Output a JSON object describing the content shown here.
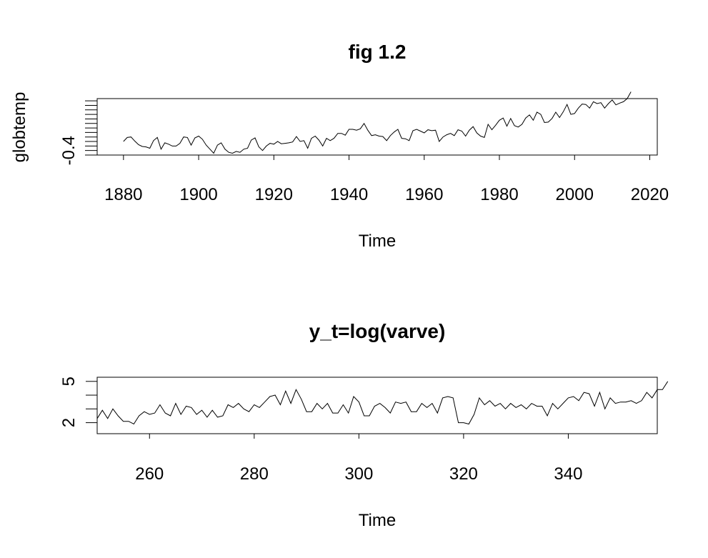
{
  "chart_data": [
    {
      "type": "line",
      "title": "fig 1.2",
      "xlabel": "Time",
      "ylabel": "globtemp",
      "xlim": [
        1873,
        2022
      ],
      "ylim": [
        -0.5,
        0.75
      ],
      "x_ticks": [
        1880,
        1900,
        1920,
        1940,
        1960,
        1980,
        2000,
        2020
      ],
      "x_tick_labels": [
        "1880",
        "1900",
        "1920",
        "1940",
        "1960",
        "1980",
        "2000",
        "2020"
      ],
      "y_ticks": [
        -0.4,
        -0.2,
        0.0,
        0.2,
        0.4,
        0.6
      ],
      "y_tick_labels": [
        "-0.4"
      ],
      "y_minor_ticks": [
        -0.5,
        -0.3,
        -0.1,
        0.1,
        0.3,
        0.5,
        0.7
      ],
      "grid": false,
      "series": [
        {
          "x_start": 1880,
          "x_step": 1,
          "values": [
            -0.2,
            -0.11,
            -0.1,
            -0.19,
            -0.27,
            -0.31,
            -0.32,
            -0.35,
            -0.18,
            -0.11,
            -0.37,
            -0.23,
            -0.26,
            -0.3,
            -0.3,
            -0.24,
            -0.1,
            -0.11,
            -0.28,
            -0.12,
            -0.08,
            -0.15,
            -0.28,
            -0.37,
            -0.46,
            -0.28,
            -0.23,
            -0.37,
            -0.44,
            -0.46,
            -0.42,
            -0.44,
            -0.37,
            -0.35,
            -0.17,
            -0.12,
            -0.32,
            -0.4,
            -0.3,
            -0.24,
            -0.26,
            -0.2,
            -0.25,
            -0.24,
            -0.23,
            -0.21,
            -0.09,
            -0.2,
            -0.18,
            -0.35,
            -0.13,
            -0.08,
            -0.17,
            -0.3,
            -0.13,
            -0.18,
            -0.13,
            -0.02,
            -0.02,
            -0.06,
            0.07,
            0.07,
            0.05,
            0.08,
            0.2,
            0.05,
            -0.07,
            -0.05,
            -0.08,
            -0.09,
            -0.18,
            -0.07,
            0.01,
            0.07,
            -0.13,
            -0.14,
            -0.18,
            0.04,
            0.07,
            0.03,
            -0.01,
            0.06,
            0.04,
            0.05,
            -0.2,
            -0.1,
            -0.05,
            -0.02,
            -0.07,
            0.06,
            0.03,
            -0.08,
            0.05,
            0.13,
            -0.01,
            -0.08,
            -0.11,
            0.18,
            0.06,
            0.16,
            0.27,
            0.32,
            0.14,
            0.31,
            0.15,
            0.12,
            0.18,
            0.32,
            0.39,
            0.27,
            0.45,
            0.4,
            0.22,
            0.23,
            0.31,
            0.45,
            0.33,
            0.46,
            0.62,
            0.4,
            0.42,
            0.54,
            0.63,
            0.62,
            0.54,
            0.68,
            0.64,
            0.66,
            0.54,
            0.64,
            0.72,
            0.61,
            0.65,
            0.68,
            0.75,
            0.9
          ]
        }
      ]
    },
    {
      "type": "line",
      "title": "y_t=log(varve)",
      "xlabel": "Time",
      "ylabel": "",
      "xlim": [
        250,
        357
      ],
      "ylim": [
        1.2,
        5.3
      ],
      "x_ticks": [
        260,
        280,
        300,
        320,
        340
      ],
      "x_tick_labels": [
        "260",
        "280",
        "300",
        "320",
        "340"
      ],
      "y_ticks": [
        2,
        3,
        4,
        5
      ],
      "y_tick_labels": [
        "2",
        "5"
      ],
      "grid": false,
      "series": [
        {
          "x_start": 250,
          "x_step": 1,
          "values": [
            2.3,
            2.9,
            2.3,
            3.0,
            2.5,
            2.1,
            2.1,
            1.9,
            2.5,
            2.8,
            2.6,
            2.7,
            3.3,
            2.7,
            2.5,
            3.4,
            2.6,
            3.2,
            3.1,
            2.6,
            2.9,
            2.4,
            2.9,
            2.4,
            2.5,
            3.3,
            3.1,
            3.4,
            3.0,
            2.8,
            3.3,
            3.1,
            3.5,
            3.9,
            4.0,
            3.3,
            4.3,
            3.4,
            4.4,
            3.7,
            2.8,
            2.8,
            3.4,
            3.0,
            3.4,
            2.7,
            2.7,
            3.3,
            2.7,
            3.9,
            3.5,
            2.5,
            2.5,
            3.2,
            3.4,
            3.1,
            2.7,
            3.5,
            3.4,
            3.5,
            2.8,
            2.8,
            3.4,
            3.1,
            3.4,
            2.7,
            3.8,
            3.9,
            3.8,
            2.0,
            2.0,
            1.9,
            2.6,
            3.8,
            3.3,
            3.6,
            3.2,
            3.4,
            3.0,
            3.4,
            3.1,
            3.3,
            3.0,
            3.4,
            3.2,
            3.2,
            2.5,
            3.4,
            3.0,
            3.4,
            3.8,
            3.9,
            3.6,
            4.2,
            4.1,
            3.2,
            4.2,
            3.0,
            3.8,
            3.4,
            3.5,
            3.5,
            3.6,
            3.4,
            3.6,
            4.2,
            3.8,
            4.4,
            4.4,
            5.0
          ]
        }
      ]
    }
  ]
}
